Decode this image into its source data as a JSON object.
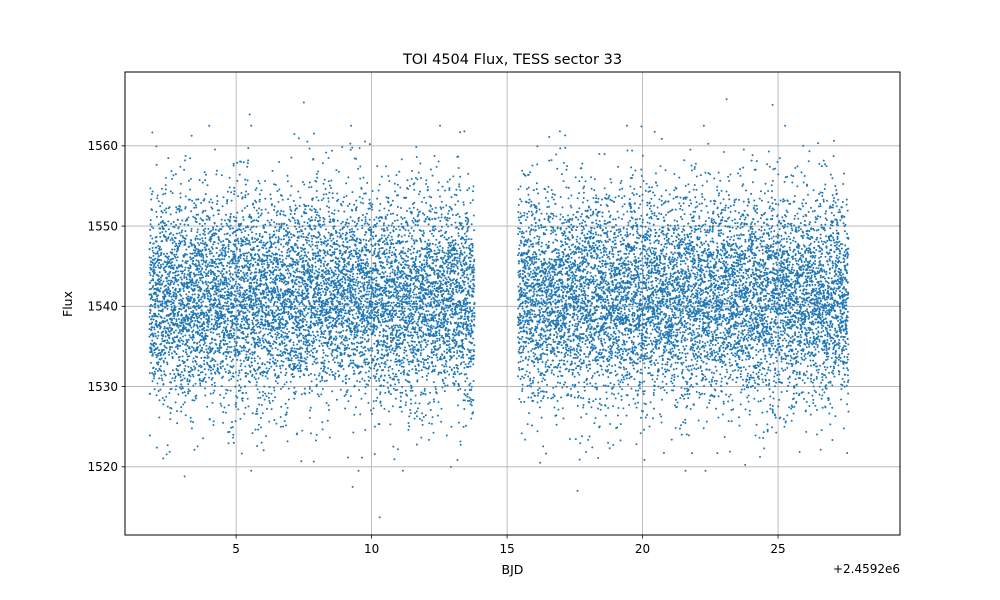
{
  "chart_data": {
    "type": "scatter",
    "title": "TOI 4504 Flux, TESS sector 33",
    "xlabel": "BJD",
    "ylabel": "Flux",
    "x_offset_label": "+2.4592e6",
    "xlim": [
      0.9,
      29.5
    ],
    "ylim": [
      1511.5,
      1569.2
    ],
    "xticks": [
      5,
      10,
      15,
      20,
      25
    ],
    "xtick_labels": [
      "5",
      "10",
      "15",
      "20",
      "25"
    ],
    "yticks": [
      1520,
      1530,
      1540,
      1550,
      1560
    ],
    "ytick_labels": [
      "1520",
      "1530",
      "1540",
      "1550",
      "1560"
    ],
    "grid": true,
    "marker_color": "#1f77b4",
    "series": [
      {
        "segments": [
          {
            "x_start": 1.8,
            "x_end": 13.8
          },
          {
            "x_start": 15.4,
            "x_end": 27.6
          }
        ],
        "flux_mean": 1541,
        "flux_std": 6.5,
        "point_spacing_days": 0.00139,
        "sample_points": [
          {
            "x": 3.1,
            "y": 1518.8
          },
          {
            "x": 5.5,
            "y": 1563.9
          },
          {
            "x": 7.5,
            "y": 1565.4
          },
          {
            "x": 9.3,
            "y": 1517.5
          },
          {
            "x": 10.3,
            "y": 1513.7
          },
          {
            "x": 17.6,
            "y": 1517.0
          },
          {
            "x": 23.1,
            "y": 1565.8
          },
          {
            "x": 24.8,
            "y": 1565.1
          }
        ]
      }
    ]
  }
}
